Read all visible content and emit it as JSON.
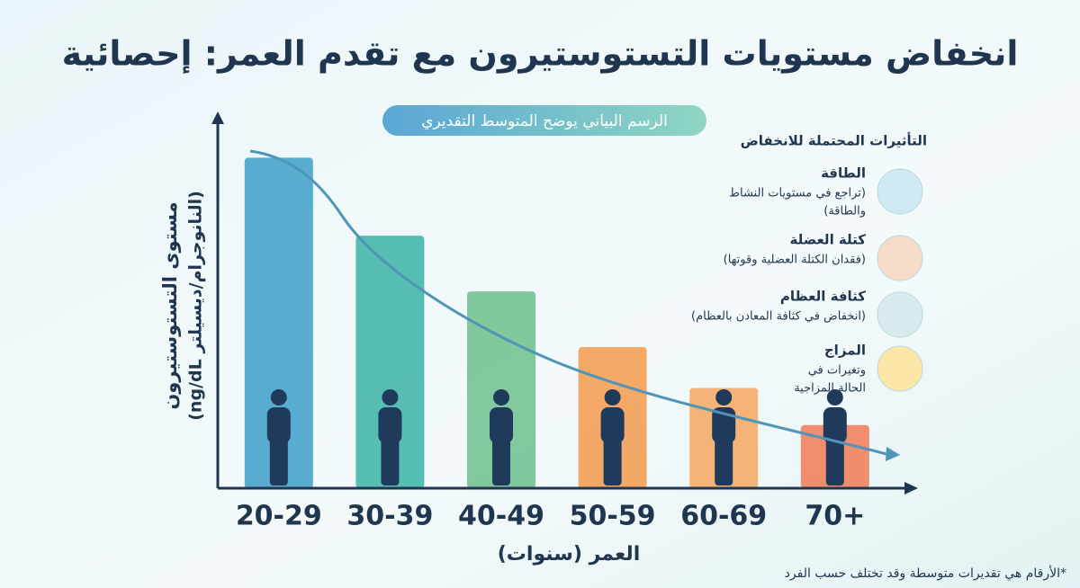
{
  "chart_data": {
    "type": "bar",
    "title": "انخفاض مستويات التستوستيرون مع تقدم العمر: إحصائية",
    "subtitle": "الرسم البياني يوضح المتوسط التقديري",
    "y_label": [
      "مستوى التستوستيرون",
      "(النانوجرام/ديسيلتر ng/dL)"
    ],
    "x_label": "العمر (سنوات)",
    "categories": [
      "20-29",
      "30-39",
      "40-49",
      "50-59",
      "60-69",
      "70+"
    ],
    "values": [
      89,
      68,
      53,
      38,
      27,
      17
    ],
    "colors": [
      "#3d9fc8",
      "#3bb3a6",
      "#6dc08c",
      "#f59a4c",
      "#f4a861",
      "#f07b57"
    ],
    "ylim": [
      0,
      100
    ],
    "effects": {
      "heading": "التأثيرات المحتملة للانخفاض",
      "items": [
        {
          "title": "الطاقة",
          "text": [
            "(تراجع في مستويات النشاط",
            "والطاقة)"
          ]
        },
        {
          "title": "كتلة العضلة",
          "text": [
            "(فقدان الكتلة العضلية وقوتها)"
          ]
        },
        {
          "title": "كثافة العظام",
          "text": [
            "(انخفاض في كثافة المعادن بالعظام)"
          ]
        },
        {
          "title": "المزاج",
          "text": [
            "وتغيرات في",
            "الحالة المزاجية"
          ]
        }
      ]
    },
    "footnote": "*الأرقام هي تقديرات متوسطة وقد تختلف حسب الفرد"
  }
}
